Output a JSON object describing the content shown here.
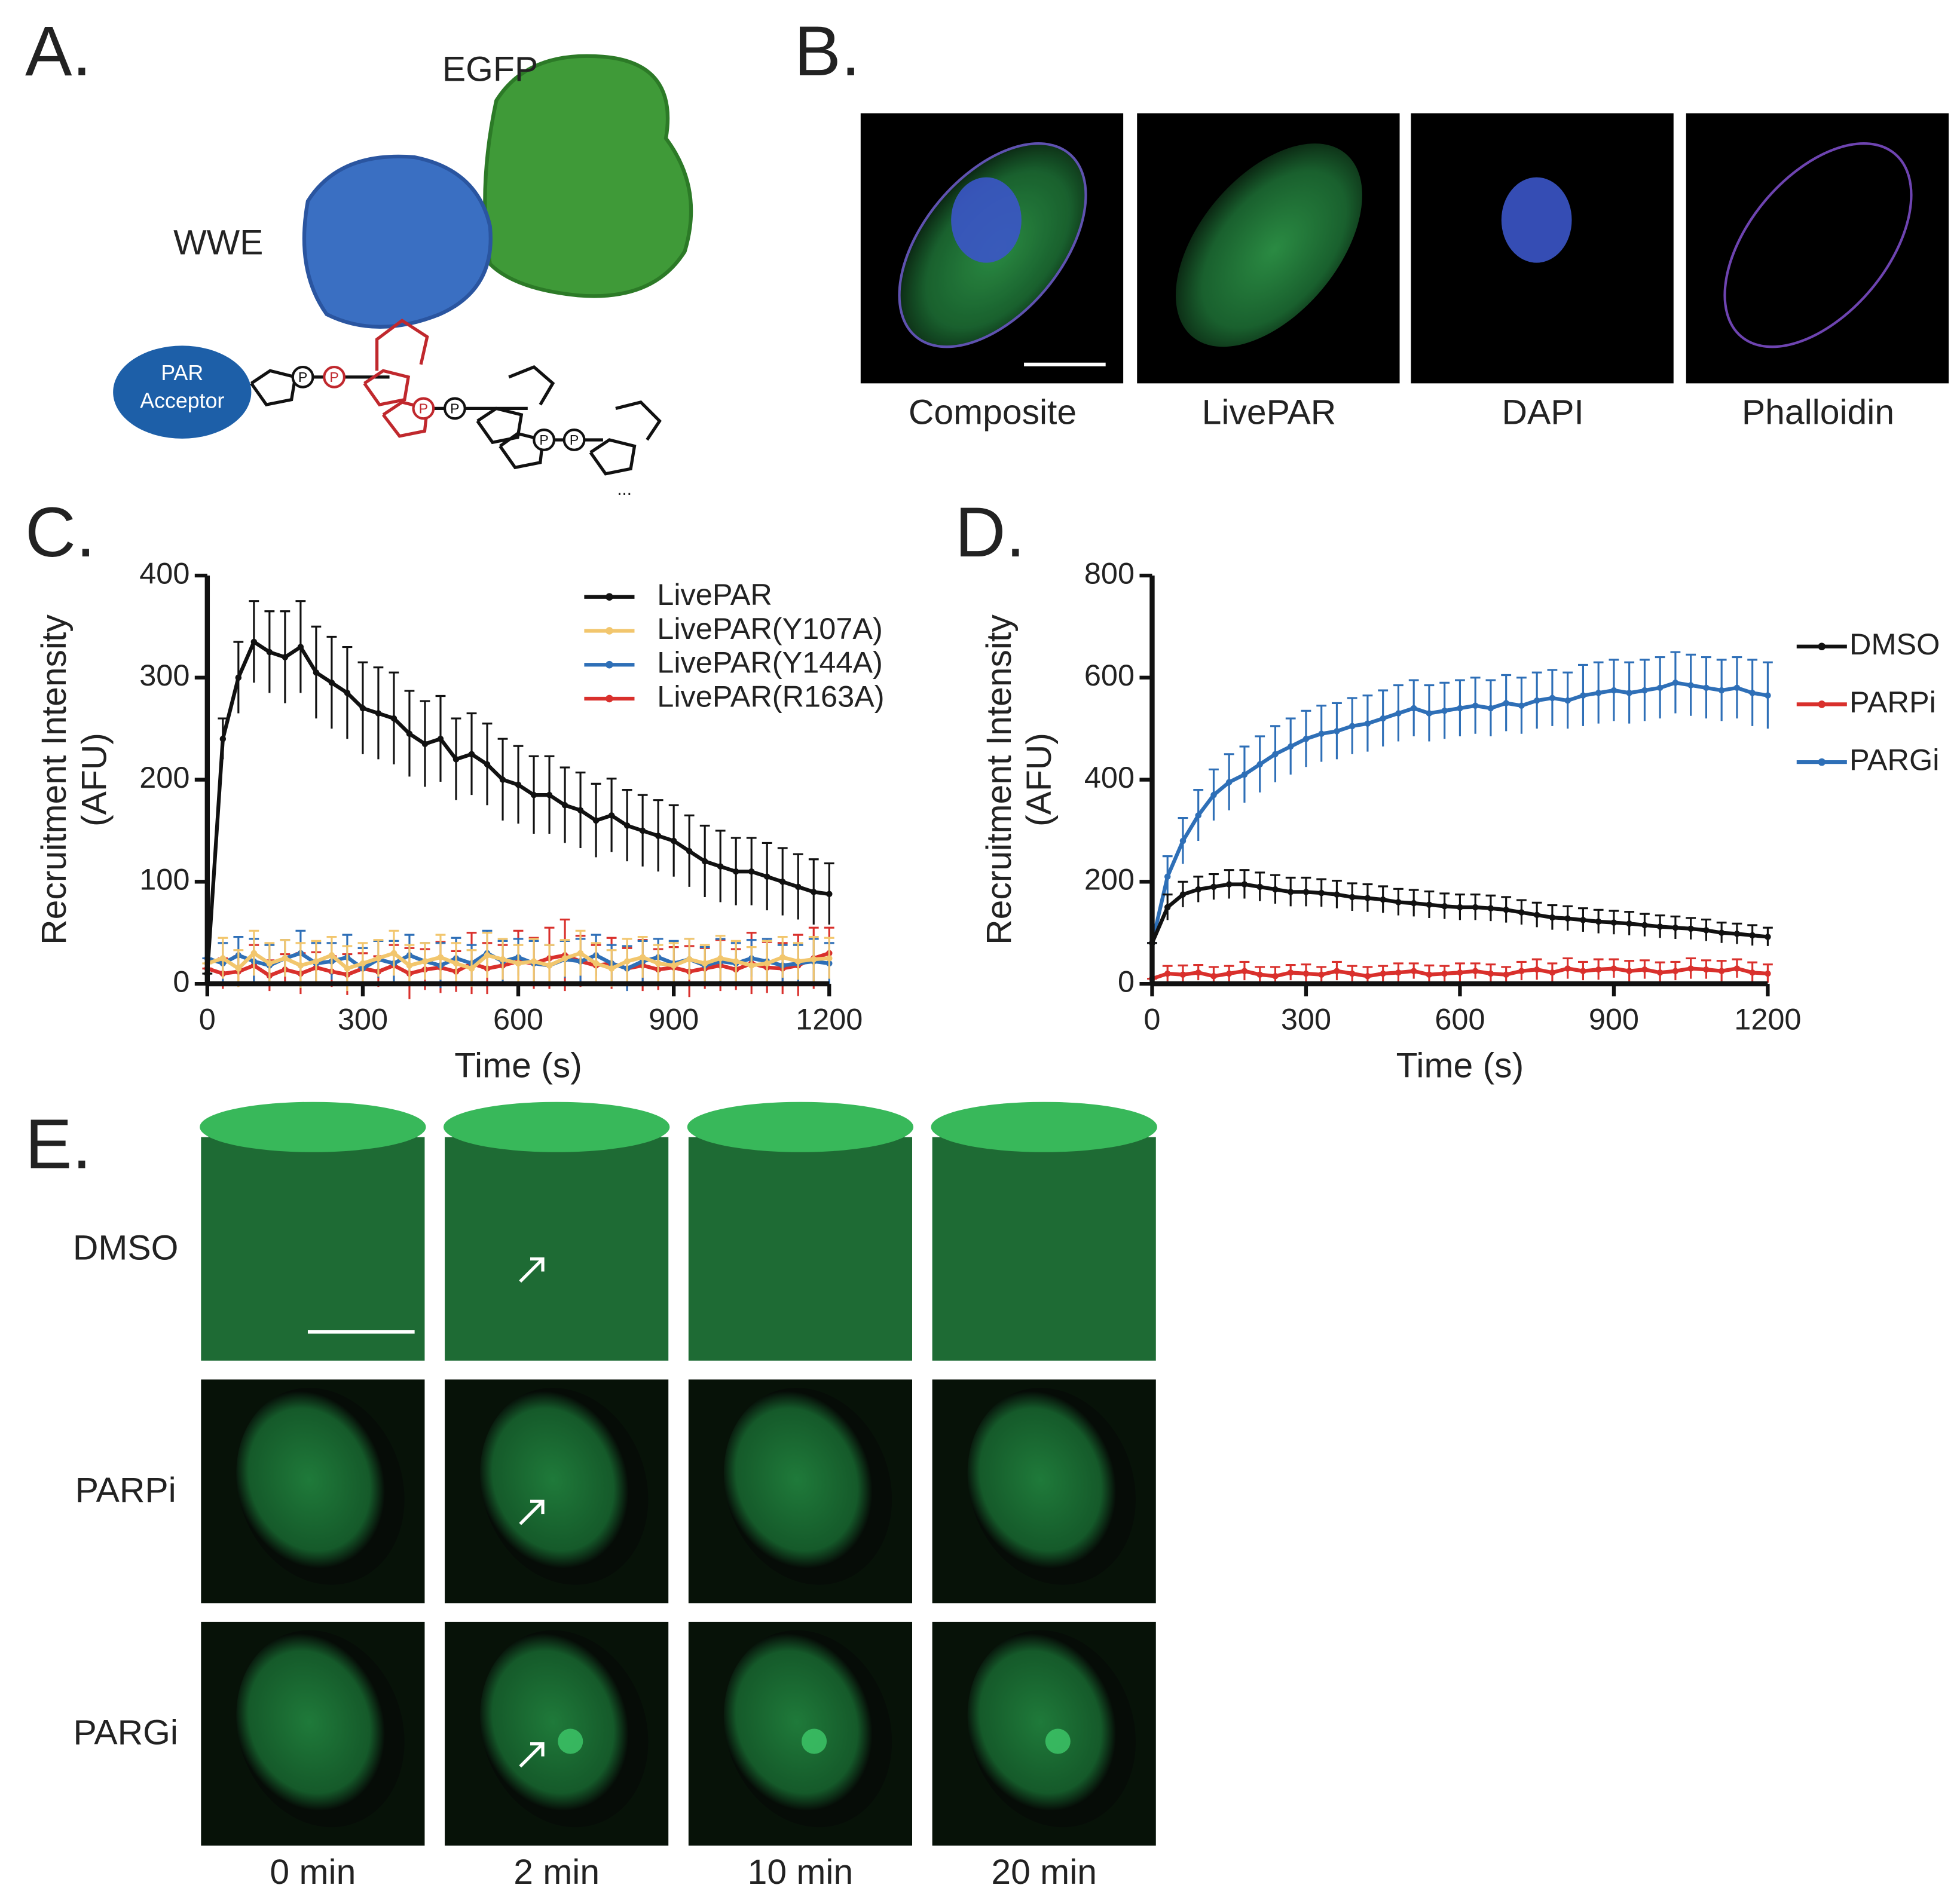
{
  "panels": {
    "A": {
      "label": "A.",
      "egfp": "EGFP",
      "wwe": "WWE",
      "acceptor": [
        "PAR",
        "Acceptor"
      ],
      "phosphate": "P",
      "ellipsis": "..."
    },
    "B": {
      "label": "B.",
      "images": [
        "Composite",
        "LivePAR",
        "DAPI",
        "Phalloidin"
      ]
    },
    "E": {
      "label": "E.",
      "rows": [
        "DMSO",
        "PARPi",
        "PARGi"
      ],
      "columns": [
        "0 min",
        "2 min",
        "10 min",
        "20 min"
      ]
    }
  },
  "chart_data": [
    {
      "type": "line",
      "panel_label": "C.",
      "x_label": "Time (s)",
      "y_label": [
        "Recruitment Intensity",
        "(AFU)"
      ],
      "x": [
        0,
        30,
        60,
        90,
        120,
        150,
        180,
        210,
        240,
        270,
        300,
        330,
        360,
        390,
        420,
        450,
        480,
        510,
        540,
        570,
        600,
        630,
        660,
        690,
        720,
        750,
        780,
        810,
        840,
        870,
        900,
        930,
        960,
        990,
        1020,
        1050,
        1080,
        1110,
        1140,
        1170,
        1200
      ],
      "xlim": [
        0,
        1200
      ],
      "xticks": [
        0,
        300,
        600,
        900,
        1200
      ],
      "ylim": [
        0,
        400
      ],
      "yticks": [
        0,
        100,
        200,
        300,
        400
      ],
      "legend": "upper right",
      "series": [
        {
          "name": "LivePAR",
          "color": "#111111",
          "values": [
            10,
            240,
            300,
            335,
            325,
            320,
            330,
            305,
            295,
            285,
            270,
            265,
            260,
            245,
            235,
            240,
            220,
            225,
            215,
            200,
            195,
            185,
            185,
            175,
            170,
            160,
            165,
            155,
            150,
            145,
            140,
            130,
            120,
            115,
            110,
            110,
            105,
            100,
            95,
            90,
            88
          ],
          "errors": [
            0,
            20,
            35,
            40,
            40,
            45,
            45,
            45,
            45,
            45,
            45,
            45,
            45,
            42,
            42,
            42,
            40,
            40,
            40,
            40,
            38,
            38,
            38,
            37,
            37,
            36,
            36,
            35,
            35,
            35,
            35,
            35,
            35,
            35,
            33,
            33,
            33,
            33,
            32,
            32,
            30
          ]
        },
        {
          "name": "LivePAR(Y107A)",
          "color": "#f2c66d",
          "values": [
            20,
            25,
            15,
            30,
            20,
            25,
            18,
            22,
            28,
            15,
            20,
            25,
            30,
            18,
            22,
            26,
            20,
            15,
            28,
            24,
            20,
            22,
            18,
            25,
            30,
            20,
            15,
            22,
            26,
            20,
            18,
            24,
            20,
            25,
            22,
            18,
            20,
            26,
            22,
            24,
            25
          ],
          "errors": [
            0,
            20,
            18,
            22,
            20,
            18,
            22,
            20,
            18,
            22,
            20,
            18,
            22,
            20,
            18,
            22,
            20,
            18,
            22,
            20,
            18,
            22,
            20,
            18,
            22,
            20,
            18,
            22,
            20,
            18,
            22,
            20,
            18,
            22,
            20,
            18,
            22,
            20,
            18,
            22,
            20
          ]
        },
        {
          "name": "LivePAR(Y144A)",
          "color": "#2e6fb7",
          "values": [
            25,
            20,
            28,
            22,
            18,
            25,
            30,
            20,
            22,
            26,
            15,
            24,
            20,
            28,
            22,
            18,
            25,
            20,
            30,
            22,
            26,
            20,
            18,
            24,
            22,
            28,
            20,
            15,
            22,
            26,
            20,
            24,
            18,
            22,
            20,
            25,
            22,
            18,
            20,
            22,
            20
          ],
          "errors": [
            0,
            20,
            18,
            22,
            20,
            18,
            22,
            20,
            18,
            22,
            20,
            18,
            22,
            20,
            18,
            22,
            20,
            18,
            22,
            20,
            18,
            22,
            20,
            18,
            22,
            20,
            18,
            22,
            20,
            18,
            22,
            20,
            18,
            22,
            20,
            18,
            22,
            20,
            18,
            22,
            20
          ]
        },
        {
          "name": "LivePAR(R163A)",
          "color": "#d9302c",
          "values": [
            15,
            10,
            12,
            18,
            8,
            14,
            10,
            16,
            12,
            9,
            15,
            12,
            18,
            10,
            14,
            16,
            12,
            20,
            15,
            18,
            22,
            20,
            25,
            28,
            22,
            18,
            20,
            15,
            18,
            14,
            16,
            12,
            15,
            18,
            14,
            20,
            16,
            15,
            18,
            25,
            30
          ],
          "errors": [
            0,
            15,
            15,
            20,
            15,
            15,
            20,
            15,
            15,
            20,
            15,
            15,
            20,
            25,
            20,
            25,
            20,
            30,
            25,
            20,
            30,
            25,
            30,
            35,
            25,
            20,
            25,
            20,
            25,
            20,
            20,
            25,
            20,
            25,
            20,
            30,
            25,
            25,
            30,
            30,
            25
          ]
        }
      ]
    },
    {
      "type": "line",
      "panel_label": "D.",
      "x_label": "Time (s)",
      "y_label": [
        "Recruitment Intensity",
        "(AFU)"
      ],
      "x": [
        0,
        30,
        60,
        90,
        120,
        150,
        180,
        210,
        240,
        270,
        300,
        330,
        360,
        390,
        420,
        450,
        480,
        510,
        540,
        570,
        600,
        630,
        660,
        690,
        720,
        750,
        780,
        810,
        840,
        870,
        900,
        930,
        960,
        990,
        1020,
        1050,
        1080,
        1110,
        1140,
        1170,
        1200
      ],
      "xlim": [
        0,
        1200
      ],
      "xticks": [
        0,
        300,
        600,
        900,
        1200
      ],
      "ylim": [
        0,
        800
      ],
      "yticks": [
        0,
        200,
        400,
        600,
        800
      ],
      "legend": "right",
      "series": [
        {
          "name": "DMSO",
          "color": "#111111",
          "values": [
            80,
            150,
            175,
            185,
            190,
            195,
            195,
            190,
            185,
            180,
            180,
            178,
            175,
            170,
            168,
            165,
            160,
            158,
            155,
            152,
            150,
            150,
            148,
            145,
            140,
            135,
            130,
            128,
            125,
            122,
            120,
            118,
            115,
            112,
            110,
            108,
            105,
            100,
            98,
            95,
            92
          ],
          "errors": [
            0,
            25,
            25,
            25,
            25,
            28,
            28,
            28,
            28,
            28,
            28,
            27,
            27,
            27,
            27,
            26,
            26,
            26,
            26,
            25,
            25,
            25,
            25,
            25,
            24,
            24,
            24,
            24,
            23,
            23,
            23,
            23,
            22,
            22,
            22,
            21,
            21,
            20,
            20,
            20,
            18
          ]
        },
        {
          "name": "PARPi",
          "color": "#d9302c",
          "values": [
            10,
            20,
            18,
            22,
            15,
            20,
            25,
            18,
            15,
            22,
            20,
            18,
            25,
            20,
            15,
            20,
            22,
            25,
            18,
            20,
            22,
            25,
            20,
            18,
            25,
            28,
            22,
            30,
            25,
            28,
            30,
            25,
            28,
            22,
            25,
            30,
            28,
            25,
            30,
            22,
            20
          ],
          "errors": [
            0,
            15,
            18,
            15,
            18,
            15,
            18,
            15,
            18,
            15,
            18,
            15,
            18,
            15,
            18,
            15,
            18,
            15,
            18,
            15,
            18,
            15,
            18,
            15,
            18,
            20,
            18,
            20,
            18,
            20,
            18,
            20,
            18,
            20,
            18,
            20,
            18,
            20,
            18,
            20,
            18
          ]
        },
        {
          "name": "PARGi",
          "color": "#2e6fb7",
          "values": [
            80,
            210,
            280,
            330,
            370,
            395,
            410,
            430,
            450,
            465,
            480,
            490,
            495,
            505,
            510,
            520,
            530,
            540,
            530,
            535,
            540,
            545,
            540,
            550,
            545,
            555,
            560,
            555,
            565,
            570,
            575,
            570,
            575,
            580,
            590,
            585,
            580,
            575,
            580,
            570,
            565
          ],
          "errors": [
            0,
            40,
            45,
            50,
            50,
            55,
            55,
            55,
            55,
            55,
            55,
            55,
            55,
            55,
            55,
            55,
            55,
            55,
            55,
            55,
            55,
            55,
            55,
            55,
            55,
            55,
            55,
            55,
            60,
            60,
            60,
            60,
            60,
            60,
            60,
            60,
            60,
            60,
            60,
            65,
            65
          ]
        }
      ]
    }
  ]
}
